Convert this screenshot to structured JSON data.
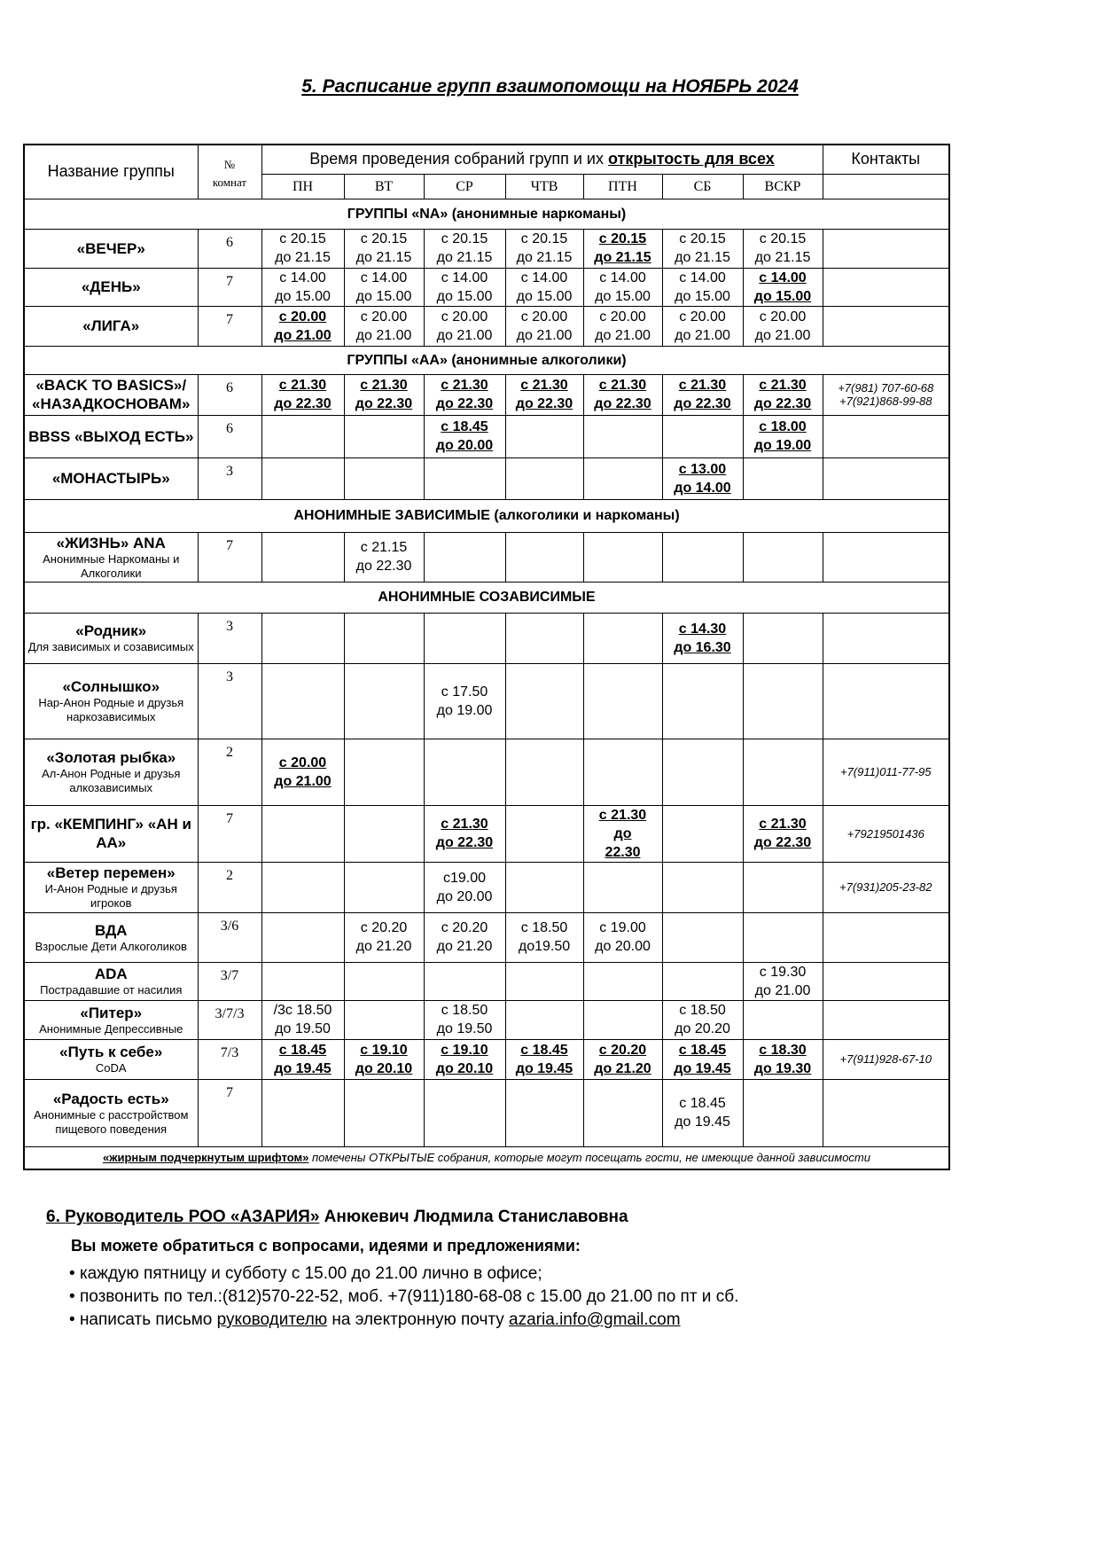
{
  "title": "5. Расписание групп взаимопомощи на НОЯБРЬ 2024",
  "header": {
    "name": "Название группы",
    "room_sym": "№",
    "room": "комнат",
    "time_prefix": "Время проведения собраний групп и их ",
    "time_open": "открытость для всех",
    "contacts": "Контакты",
    "days": [
      "ПН",
      "ВТ",
      "СР",
      "ЧТВ",
      "ПТН",
      "СБ",
      "ВСКР"
    ]
  },
  "rows": [
    {
      "section": "ГРУППЫ «NA» (анонимные наркоманы)"
    },
    {
      "name": "«ВЕЧЕР»",
      "room": "6",
      "cells": [
        {
          "l": [
            "с 20.15",
            "до 21.15"
          ]
        },
        {
          "l": [
            "с 20.15",
            "до 21.15"
          ]
        },
        {
          "l": [
            "с 20.15",
            "до 21.15"
          ]
        },
        {
          "l": [
            "с 20.15",
            "до 21.15"
          ]
        },
        {
          "l": [
            "с 20.15",
            "до 21.15"
          ],
          "open": true
        },
        {
          "l": [
            "с 20.15",
            "до 21.15"
          ]
        },
        {
          "l": [
            "с 20.15",
            "до 21.15"
          ]
        }
      ]
    },
    {
      "name": "«ДЕНЬ»",
      "room": "7",
      "cells": [
        {
          "l": [
            "с 14.00",
            "до 15.00"
          ]
        },
        {
          "l": [
            "с 14.00",
            "до 15.00"
          ]
        },
        {
          "l": [
            "с 14.00",
            "до 15.00"
          ]
        },
        {
          "l": [
            "с 14.00",
            "до 15.00"
          ]
        },
        {
          "l": [
            "с 14.00",
            "до 15.00"
          ]
        },
        {
          "l": [
            "с 14.00",
            "до 15.00"
          ]
        },
        {
          "l": [
            "с 14.00",
            "до 15.00"
          ],
          "open": true
        }
      ]
    },
    {
      "name": "«ЛИГА»",
      "room": "7",
      "cells": [
        {
          "l": [
            "с 20.00",
            "до 21.00"
          ],
          "open": true
        },
        {
          "l": [
            "с 20.00",
            "до 21.00"
          ]
        },
        {
          "l": [
            "с 20.00",
            "до 21.00"
          ]
        },
        {
          "l": [
            "с 20.00",
            "до 21.00"
          ]
        },
        {
          "l": [
            "с 20.00",
            "до 21.00"
          ]
        },
        {
          "l": [
            "с 20.00",
            "до 21.00"
          ]
        },
        {
          "l": [
            "с 20.00",
            "до 21.00"
          ]
        }
      ]
    },
    {
      "section": "ГРУППЫ «АА» (анонимные алкоголики)"
    },
    {
      "name": "«BACK TO BASICS»/ «НАЗАДКОСНОВАМ»",
      "room": "6",
      "cells": [
        {
          "l": [
            "с 21.30",
            "до 22.30"
          ],
          "open": true
        },
        {
          "l": [
            "с 21.30",
            "до 22.30"
          ],
          "open": true
        },
        {
          "l": [
            "с 21.30",
            "до 22.30"
          ],
          "open": true
        },
        {
          "l": [
            "с 21.30",
            "до 22.30"
          ],
          "open": true
        },
        {
          "l": [
            "с 21.30",
            "до 22.30"
          ],
          "open": true
        },
        {
          "l": [
            "с 21.30",
            "до 22.30"
          ],
          "open": true
        },
        {
          "l": [
            "с 21.30",
            "до 22.30"
          ],
          "open": true
        }
      ],
      "contact": "+7(981) 707-60-68 +7(921)868-99-88"
    },
    {
      "name": "BBSS «ВЫХОД ЕСТЬ»",
      "room": "6",
      "cells": [
        null,
        null,
        {
          "l": [
            "с 18.45",
            "до 20.00"
          ],
          "open": true
        },
        null,
        null,
        null,
        {
          "l": [
            "с 18.00",
            "до 19.00"
          ],
          "open": true
        }
      ]
    },
    {
      "name": "«МОНАСТЫРЬ»",
      "room": "3",
      "cells": [
        null,
        null,
        null,
        null,
        null,
        {
          "l": [
            "с 13.00",
            "до 14.00"
          ],
          "open": true
        },
        null
      ]
    },
    {
      "section": "АНОНИМНЫЕ ЗАВИСИМЫЕ (алкоголики и наркоманы)"
    },
    {
      "name": "«ЖИЗНЬ» ANA",
      "sub": "Анонимные Наркоманы и Алкоголики",
      "room": "7",
      "cells": [
        null,
        {
          "l": [
            "с 21.15",
            "до 22.30"
          ]
        },
        null,
        null,
        null,
        null,
        null
      ]
    },
    {
      "section": "АНОНИМНЫЕ СОЗАВИСИМЫЕ"
    },
    {
      "name": "«Родник»",
      "sub": "Для зависимых и созависимых",
      "room": "3",
      "cells": [
        null,
        null,
        null,
        null,
        null,
        {
          "l": [
            "с 14.30",
            "до 16.30"
          ],
          "open": true
        },
        null
      ]
    },
    {
      "name": "«Солнышко»",
      "sub": "Нар-Анон Родные и друзья наркозависимых",
      "room": "3",
      "cells": [
        null,
        null,
        {
          "l": [
            "с 17.50",
            "до 19.00"
          ]
        },
        null,
        null,
        null,
        null
      ]
    },
    {
      "name": "«Золотая рыбка»",
      "sub": "Ал-Анон Родные и друзья алкозависимых",
      "room": "2",
      "cells": [
        {
          "l": [
            "с 20.00",
            "до 21.00"
          ],
          "open": true
        },
        null,
        null,
        null,
        null,
        null,
        null
      ],
      "contact": "+7(911)011-77-95"
    },
    {
      "name": "гр. «КЕМПИНГ» «АН и АА»",
      "room": "7",
      "cells": [
        null,
        null,
        {
          "l": [
            "с 21.30",
            "до 22.30"
          ],
          "open": true
        },
        null,
        {
          "l": [
            "с 21.30",
            "до",
            "22.30"
          ],
          "open": true
        },
        null,
        {
          "l": [
            "с 21.30",
            "до 22.30"
          ],
          "open": true
        }
      ],
      "contact": "+79219501436"
    },
    {
      "name": "«Ветер перемен»",
      "sub": "И-Анон Родные и друзья игроков",
      "room": "2",
      "cells": [
        null,
        null,
        {
          "l": [
            "с19.00",
            "до 20.00"
          ]
        },
        null,
        null,
        null,
        null
      ],
      "contact": "+7(931)205-23-82"
    },
    {
      "name": "ВДА",
      "sub": "Взрослые Дети Алкоголиков",
      "room": "3/6",
      "cells": [
        null,
        {
          "l": [
            "с 20.20",
            "до 21.20"
          ]
        },
        {
          "l": [
            "с 20.20",
            "до 21.20"
          ]
        },
        {
          "l": [
            "с 18.50",
            "до19.50"
          ]
        },
        {
          "l": [
            "с 19.00",
            "до 20.00"
          ]
        },
        null,
        null
      ]
    },
    {
      "name": "ADA",
      "sub": "Пострадавшие от насилия",
      "room": "3/7",
      "cells": [
        null,
        null,
        null,
        null,
        null,
        null,
        {
          "l": [
            "с 19.30",
            "до 21.00"
          ]
        }
      ]
    },
    {
      "name": "«Питер»",
      "sub": "Анонимные Депрессивные",
      "room": "3/7/3",
      "cells": [
        {
          "l": [
            "/3с 18.50",
            "до 19.50"
          ]
        },
        null,
        {
          "l": [
            "с 18.50",
            "до 19.50"
          ]
        },
        null,
        null,
        {
          "l": [
            "с 18.50",
            "до 20.20"
          ]
        },
        null
      ]
    },
    {
      "name": "«Путь к себе»",
      "sub": "CoDA",
      "room": "7/3",
      "cells": [
        {
          "l": [
            "с 18.45",
            "до 19.45"
          ],
          "open": true
        },
        {
          "l": [
            "с 19.10",
            "до 20.10"
          ],
          "open": true
        },
        {
          "l": [
            "с 19.10",
            "до 20.10"
          ],
          "open": true
        },
        {
          "l": [
            "с 18.45",
            "до 19.45"
          ],
          "open": true
        },
        {
          "l": [
            "с 20.20",
            "до 21.20"
          ],
          "open": true
        },
        {
          "l": [
            "с 18.45",
            "до 19.45"
          ],
          "open": true
        },
        {
          "l": [
            "с 18.30",
            "до 19.30"
          ],
          "open": true
        }
      ],
      "contact": "+7(911)928-67-10"
    },
    {
      "name": "«Радость есть»",
      "sub": "Анонимные с расстройством пищевого поведения",
      "room": "7",
      "cells": [
        null,
        null,
        null,
        null,
        null,
        {
          "l": [
            "с 18.45",
            "до 19.45"
          ]
        },
        null
      ]
    }
  ],
  "note": {
    "bold": "«жирным подчеркнутым шрифтом»",
    "text": " помечены ОТКРЫТЫЕ собрания, которые могут посещать гости, не имеющие данной зависимости"
  },
  "section6": {
    "num": "6. ",
    "org": "Руководитель РОО «АЗАРИЯ»",
    "person": " Анюкевич Людмила Станиславовна",
    "intro": "Вы можете обратиться с вопросами, идеями и предложениями:",
    "items": [
      "каждую пятницу и субботу с 15.00 до 21.00 лично в офисе;",
      "позвонить по тел.:(812)570-22-52, моб. +7(911)180-68-08 с 15.00 до 21.00 по пт и сб."
    ],
    "mail_pre": "написать письмо ",
    "mail_link": "руководителю",
    "mail_mid": " на электронную почту ",
    "email": "azaria.info@gmail.com"
  }
}
